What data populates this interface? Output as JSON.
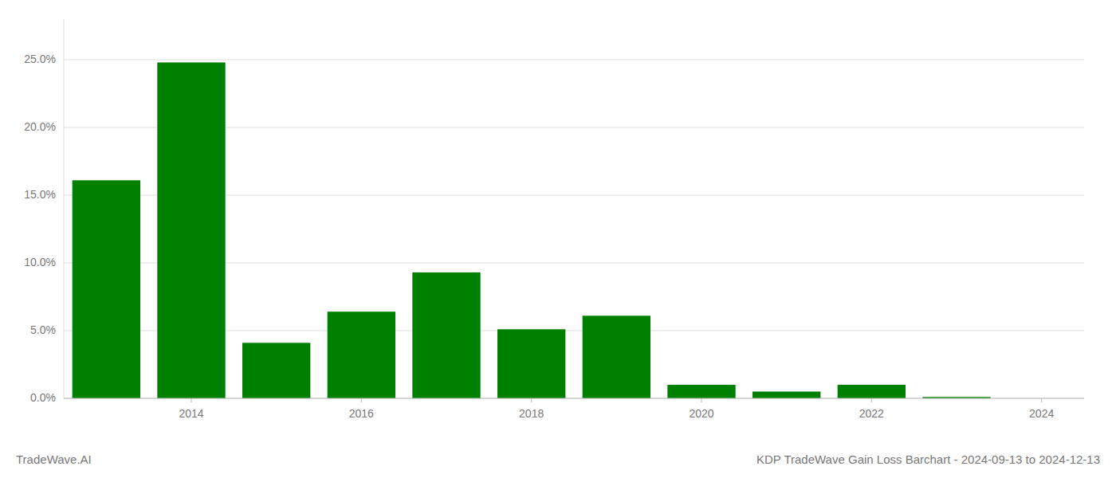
{
  "chart_data": {
    "type": "bar",
    "title": "KDP TradeWave Gain Loss Barchart - 2024-09-13 to 2024-12-13",
    "annotations": [
      "TradeWave.AI"
    ],
    "x": [
      2013,
      2014,
      2015,
      2016,
      2017,
      2018,
      2019,
      2020,
      2021,
      2022,
      2023
    ],
    "values": [
      0.161,
      0.248,
      0.041,
      0.064,
      0.093,
      0.051,
      0.061,
      0.01,
      0.005,
      0.01,
      0.001
    ],
    "color": "#008000",
    "xlim": [
      2012.5,
      2024.5
    ],
    "xticks": [
      2014,
      2016,
      2018,
      2020,
      2022,
      2024
    ],
    "ylim": [
      0,
      0.28
    ],
    "yticks": [
      {
        "value": 0.0,
        "label": "0.0%"
      },
      {
        "value": 0.05,
        "label": "5.0%"
      },
      {
        "value": 0.1,
        "label": "10.0%"
      },
      {
        "value": 0.15,
        "label": "15.0%"
      },
      {
        "value": 0.2,
        "label": "20.0%"
      },
      {
        "value": 0.25,
        "label": "25.0%"
      }
    ],
    "grid": true
  }
}
